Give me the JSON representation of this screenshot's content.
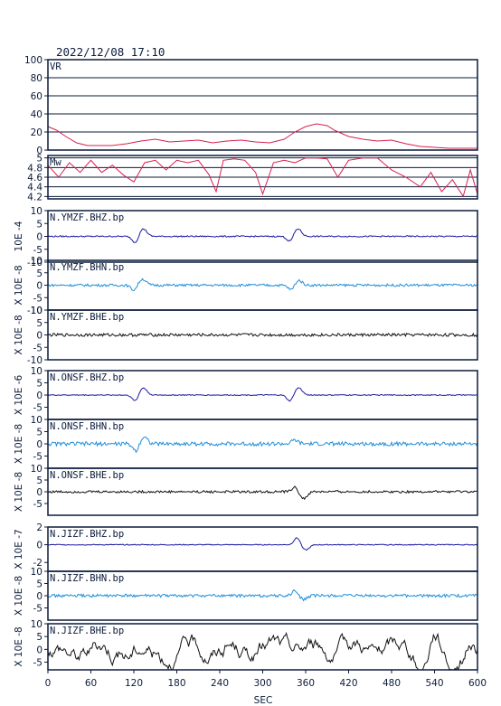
{
  "header": {
    "timestamp": "2022/12/08  17:10"
  },
  "x_axis": {
    "label": "SEC",
    "ticks": [
      0,
      60,
      120,
      180,
      240,
      300,
      360,
      420,
      480,
      540,
      600
    ],
    "range": [
      0,
      600
    ]
  },
  "colors": {
    "frame": "#0b1b3a",
    "vr": "#d6204f",
    "mw": "#d6204f",
    "bhz": "#1a1aa0",
    "bhn": "#1f8fd8",
    "bhe": "#111111"
  },
  "chart_data": [
    {
      "type": "line",
      "name": "vr",
      "label": "VR",
      "ylim": [
        0,
        100
      ],
      "yticks": [
        0,
        20,
        40,
        60,
        80,
        100
      ],
      "grid": true,
      "x": [
        0,
        12,
        25,
        40,
        55,
        70,
        90,
        110,
        130,
        150,
        170,
        190,
        210,
        230,
        250,
        270,
        290,
        310,
        330,
        345,
        360,
        375,
        390,
        400,
        420,
        440,
        460,
        480,
        500,
        520,
        540,
        560,
        580,
        600
      ],
      "y": [
        26,
        22,
        15,
        8,
        5,
        5,
        5,
        7,
        10,
        12,
        9,
        10,
        11,
        8,
        10,
        11,
        9,
        8,
        12,
        20,
        26,
        29,
        27,
        22,
        15,
        12,
        10,
        11,
        7,
        4,
        3,
        2,
        2,
        2
      ]
    },
    {
      "type": "line",
      "name": "mw",
      "label": "Mw",
      "ylim": [
        4.15,
        5.05
      ],
      "yticks": [
        4.2,
        4.4,
        4.6,
        4.8,
        5.0
      ],
      "grid": true,
      "x": [
        0,
        15,
        30,
        45,
        60,
        75,
        90,
        105,
        120,
        135,
        150,
        165,
        180,
        195,
        210,
        225,
        235,
        245,
        260,
        275,
        290,
        300,
        315,
        330,
        345,
        360,
        375,
        390,
        405,
        420,
        440,
        460,
        480,
        500,
        520,
        535,
        550,
        565,
        580,
        590,
        600
      ],
      "y": [
        4.85,
        4.6,
        4.9,
        4.7,
        4.95,
        4.7,
        4.85,
        4.65,
        4.5,
        4.9,
        4.95,
        4.75,
        4.95,
        4.9,
        4.95,
        4.65,
        4.3,
        4.95,
        4.98,
        4.95,
        4.7,
        4.25,
        4.9,
        4.95,
        4.9,
        5.0,
        5.0,
        4.98,
        4.6,
        4.95,
        5.0,
        5.0,
        4.75,
        4.6,
        4.4,
        4.7,
        4.3,
        4.55,
        4.2,
        4.75,
        4.25
      ]
    },
    {
      "type": "line",
      "name": "ymzf-bhz",
      "label": "N.YMZF.BHZ.bp",
      "scale_label": "10E -4",
      "ylim": [
        -10,
        10
      ],
      "yticks": [
        -10,
        -5,
        0,
        5,
        10
      ],
      "color_key": "bhz",
      "events": [
        {
          "t": 122,
          "a": -2.5,
          "w": 6
        },
        {
          "t": 133,
          "a": 3,
          "w": 7
        },
        {
          "t": 338,
          "a": -2,
          "w": 6
        },
        {
          "t": 349,
          "a": 3,
          "w": 7
        }
      ],
      "noise": 0.25
    },
    {
      "type": "line",
      "name": "ymzf-bhn",
      "label": "N.YMZF.BHN.bp",
      "scale_label": "X 10E -8",
      "ylim": [
        -10,
        10
      ],
      "yticks": [
        -10,
        -5,
        0,
        5,
        10
      ],
      "color_key": "bhn",
      "events": [
        {
          "t": 120,
          "a": -2,
          "w": 6
        },
        {
          "t": 132,
          "a": 2.5,
          "w": 7
        },
        {
          "t": 340,
          "a": -2,
          "w": 6
        },
        {
          "t": 350,
          "a": 2,
          "w": 7
        }
      ],
      "noise": 0.5
    },
    {
      "type": "line",
      "name": "ymzf-bhe",
      "label": "N.YMZF.BHE.bp",
      "scale_label": "X 10E -8",
      "ylim": [
        -10,
        10
      ],
      "yticks": [
        -10,
        -5,
        0,
        5,
        10
      ],
      "color_key": "bhe",
      "events": [],
      "noise": 0.6
    },
    {
      "type": "line",
      "name": "onsf-bhz",
      "label": "N.ONSF.BHZ.bp",
      "scale_label": "X 10E -6",
      "ylim": [
        -10,
        10
      ],
      "yticks": [
        -5,
        0,
        5,
        10
      ],
      "color_key": "bhz",
      "events": [
        {
          "t": 122,
          "a": -2.5,
          "w": 6
        },
        {
          "t": 133,
          "a": 3,
          "w": 7
        },
        {
          "t": 338,
          "a": -2.5,
          "w": 6
        },
        {
          "t": 350,
          "a": 3,
          "w": 7
        }
      ],
      "noise": 0.2
    },
    {
      "type": "line",
      "name": "onsf-bhn",
      "label": "N.ONSF.BHN.bp",
      "scale_label": "X 10E -8",
      "ylim": [
        -10,
        10
      ],
      "yticks": [
        -5,
        0,
        5,
        10
      ],
      "color_key": "bhn",
      "events": [
        {
          "t": 123,
          "a": -3,
          "w": 6
        },
        {
          "t": 134,
          "a": 3,
          "w": 7
        },
        {
          "t": 345,
          "a": 1.5,
          "w": 6
        }
      ],
      "noise": 0.8
    },
    {
      "type": "line",
      "name": "onsf-bhe",
      "label": "N.ONSF.BHE.bp",
      "scale_label": "X 10E -8",
      "ylim": [
        -10,
        10
      ],
      "yticks": [
        -5,
        0,
        5,
        10
      ],
      "color_key": "bhe",
      "events": [
        {
          "t": 345,
          "a": 2,
          "w": 6
        },
        {
          "t": 357,
          "a": -3,
          "w": 7
        }
      ],
      "noise": 0.5
    },
    {
      "type": "line",
      "name": "jizf-bhz",
      "label": "N.JIZF.BHZ.bp",
      "scale_label": "X 10E -7",
      "ylim": [
        -3,
        2
      ],
      "yticks": [
        -2,
        0,
        2
      ],
      "color_key": "bhz",
      "events": [
        {
          "t": 348,
          "a": 0.8,
          "w": 6
        },
        {
          "t": 360,
          "a": -0.6,
          "w": 7
        }
      ],
      "noise": 0.05
    },
    {
      "type": "line",
      "name": "jizf-bhn",
      "label": "N.JIZF.BHN.bp",
      "scale_label": "X 10E -8",
      "ylim": [
        -10,
        10
      ],
      "yticks": [
        -5,
        0,
        5,
        10
      ],
      "color_key": "bhn",
      "events": [
        {
          "t": 345,
          "a": 2,
          "w": 6
        },
        {
          "t": 357,
          "a": -1.5,
          "w": 7
        }
      ],
      "noise": 0.6
    },
    {
      "type": "line",
      "name": "jizf-bhe",
      "label": "N.JIZF.BHE.bp",
      "scale_label": "X 10E -8",
      "ylim": [
        -8,
        10
      ],
      "yticks": [
        -5,
        0,
        5,
        10
      ],
      "color_key": "bhe",
      "events": [
        {
          "t": 100,
          "a": 2,
          "w": 8
        },
        {
          "t": 520,
          "a": -6,
          "w": 9
        },
        {
          "t": 540,
          "a": 8,
          "w": 8
        },
        {
          "t": 565,
          "a": -5,
          "w": 8
        },
        {
          "t": 590,
          "a": 6,
          "w": 7
        }
      ],
      "noise": 2.5,
      "smooth": true
    }
  ]
}
